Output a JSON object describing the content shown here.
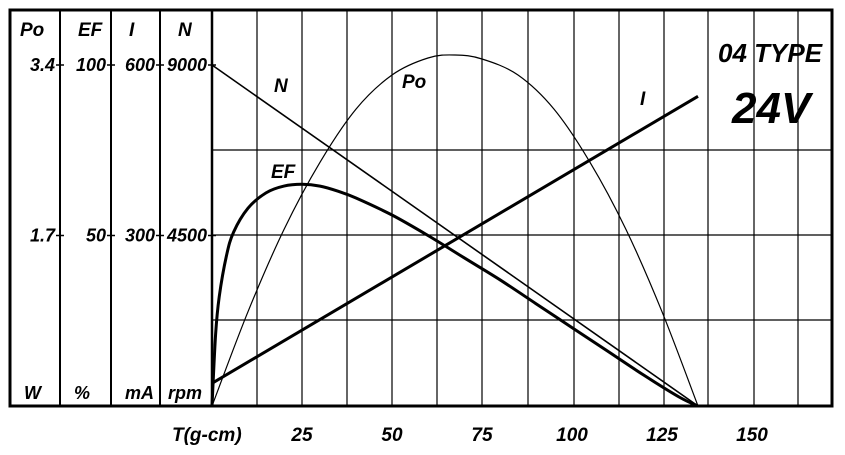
{
  "chart_data": {
    "type": "line",
    "type_label": "04 TYPE",
    "voltage_label": "24V",
    "xlabel": "T(g-cm)",
    "x_ticks": [
      "25",
      "50",
      "75",
      "100",
      "125",
      "150"
    ],
    "x_tick_values": [
      25,
      50,
      75,
      100,
      125,
      150
    ],
    "xlim": [
      0,
      172
    ],
    "axes": [
      {
        "name": "Po",
        "unit": "W",
        "ticks": [
          "3.4",
          "1.7"
        ],
        "ylim": [
          0,
          3.4
        ]
      },
      {
        "name": "EF",
        "unit": "%",
        "ticks": [
          "100",
          "50"
        ],
        "ylim": [
          0,
          100
        ]
      },
      {
        "name": "I",
        "unit": "mA",
        "ticks": [
          "600",
          "300"
        ],
        "ylim": [
          0,
          600
        ]
      },
      {
        "name": "N",
        "unit": "rpm",
        "ticks": [
          "9000",
          "4500"
        ],
        "ylim": [
          0,
          9000
        ]
      }
    ],
    "series": [
      {
        "name": "N",
        "axis": "N",
        "x": [
          0,
          135
        ],
        "values": [
          9000,
          0
        ]
      },
      {
        "name": "I",
        "axis": "I",
        "x": [
          0,
          135
        ],
        "values": [
          40,
          545
        ]
      },
      {
        "name": "Po",
        "axis": "Po",
        "x": [
          0,
          10,
          20,
          30,
          40,
          50,
          60,
          67.5,
          75,
          85,
          95,
          105,
          115,
          125,
          135
        ],
        "values": [
          0,
          0.94,
          1.76,
          2.43,
          2.96,
          3.3,
          3.47,
          3.5,
          3.46,
          3.3,
          2.96,
          2.43,
          1.76,
          0.94,
          0
        ]
      },
      {
        "name": "EF",
        "axis": "EF",
        "x": [
          0,
          1,
          2,
          4,
          6,
          10,
          15,
          20,
          25,
          30,
          35,
          40,
          50,
          60,
          70,
          80,
          90,
          100,
          110,
          120,
          130,
          135
        ],
        "values": [
          0,
          21,
          32,
          44,
          51,
          58,
          62.5,
          64.5,
          65,
          64.5,
          63,
          61,
          56,
          50,
          43.5,
          37,
          30,
          23,
          16,
          9,
          2.5,
          0
        ]
      }
    ]
  }
}
